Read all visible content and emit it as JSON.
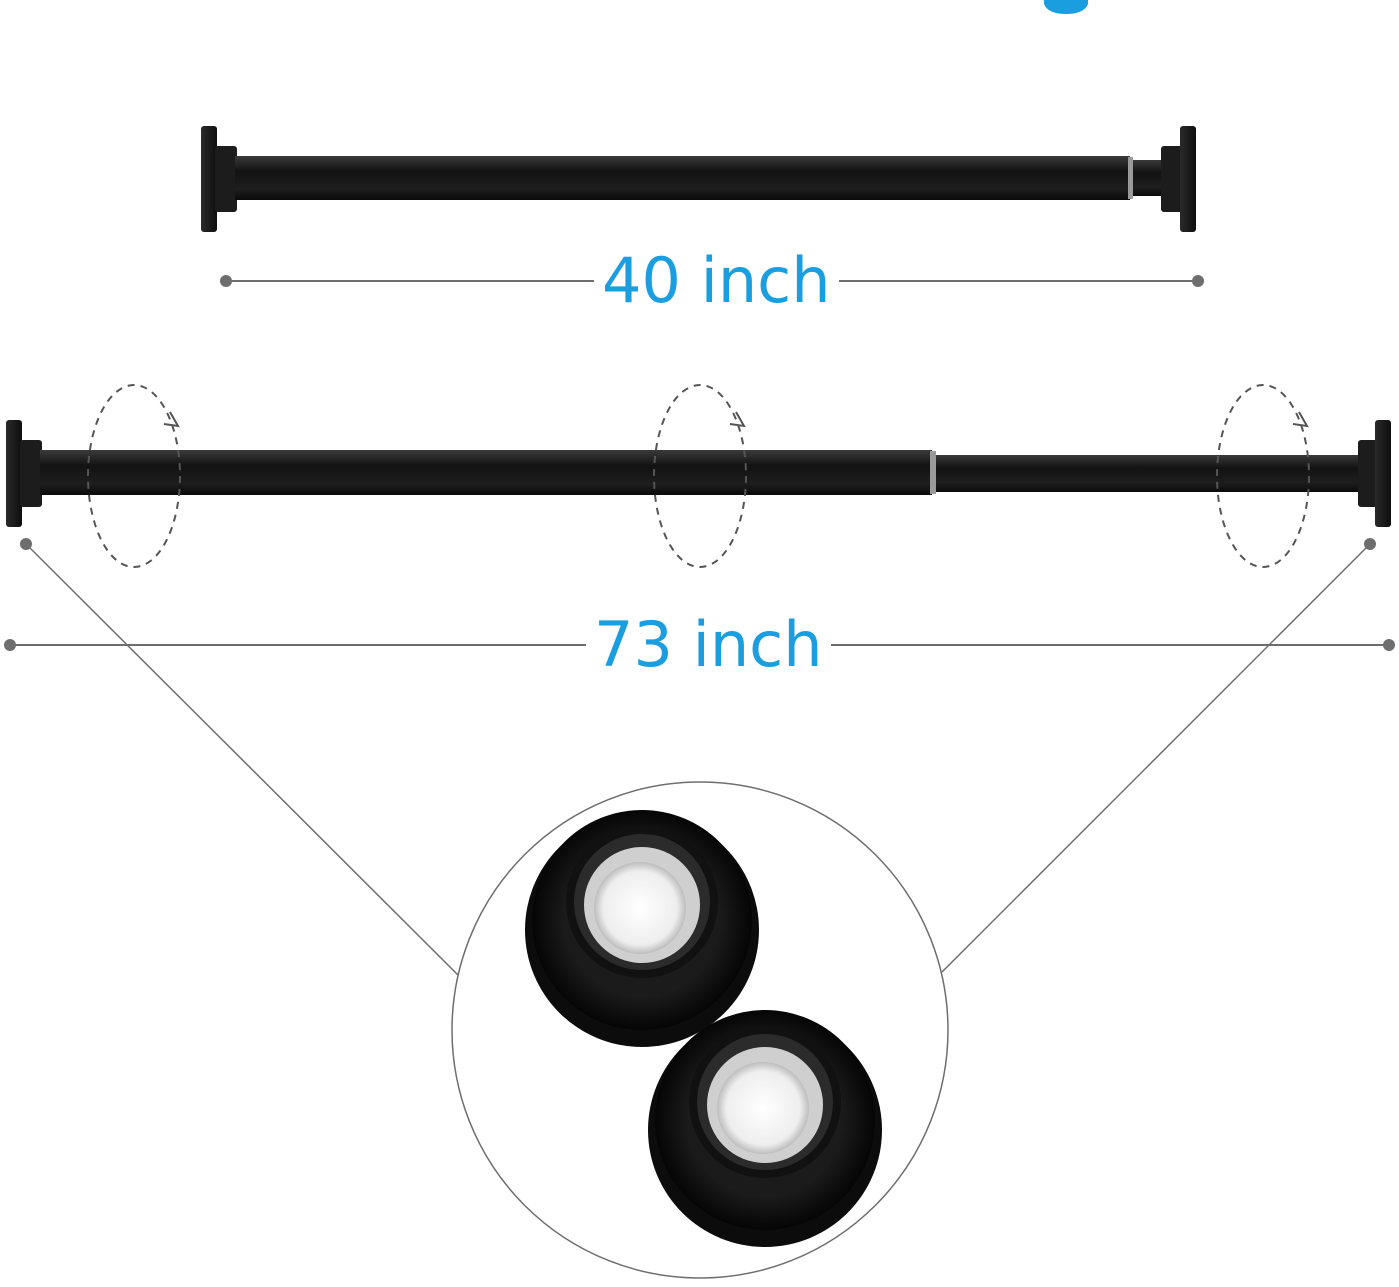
{
  "colors": {
    "label": "#1a9ee0",
    "rod": "#1b1b1b",
    "dimension_line": "#6e6e6e",
    "background": "#ffffff"
  },
  "icons": [
    "rotate-arrow-icon"
  ],
  "labels": {
    "short_length": "40 inch",
    "long_length": "73 inch"
  }
}
